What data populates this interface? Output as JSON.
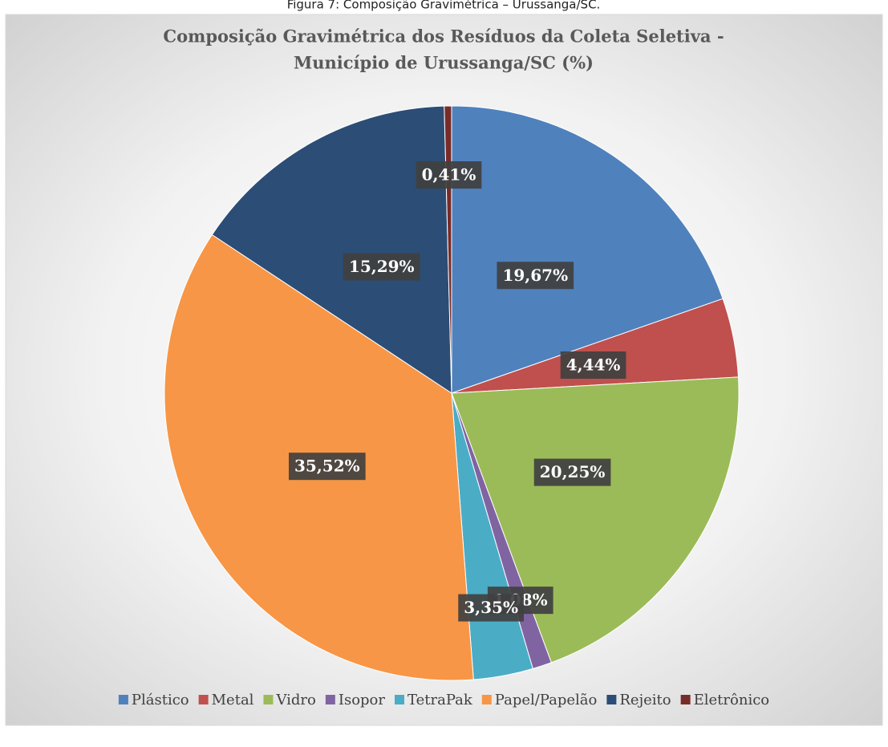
{
  "caption": "Figura 7: Composição Gravimétrica – Urussanga/SC.",
  "chart_data": {
    "type": "pie",
    "title": [
      "Composição Gravimétrica  dos Resíduos da Coleta Seletiva -",
      "Município de Urussanga/SC  (%)"
    ],
    "categories": [
      "Plástico",
      "Metal",
      "Vidro",
      "Isopor",
      "TetraPak",
      "Papel/Papelão",
      "Rejeito",
      "Eletrônico"
    ],
    "values": [
      19.67,
      4.44,
      20.25,
      1.08,
      3.35,
      35.52,
      15.29,
      0.41
    ],
    "value_labels": [
      "19,67%",
      "4,44%",
      "20,25%",
      "1,08%",
      "3,35%",
      "35,52%",
      "15,29%",
      "0,41%"
    ],
    "colors": [
      "#4f81bd",
      "#c0504d",
      "#9bbb59",
      "#8064a2",
      "#4bacc6",
      "#f79646",
      "#2c4d75",
      "#772c2a"
    ],
    "legend": "bottom"
  }
}
